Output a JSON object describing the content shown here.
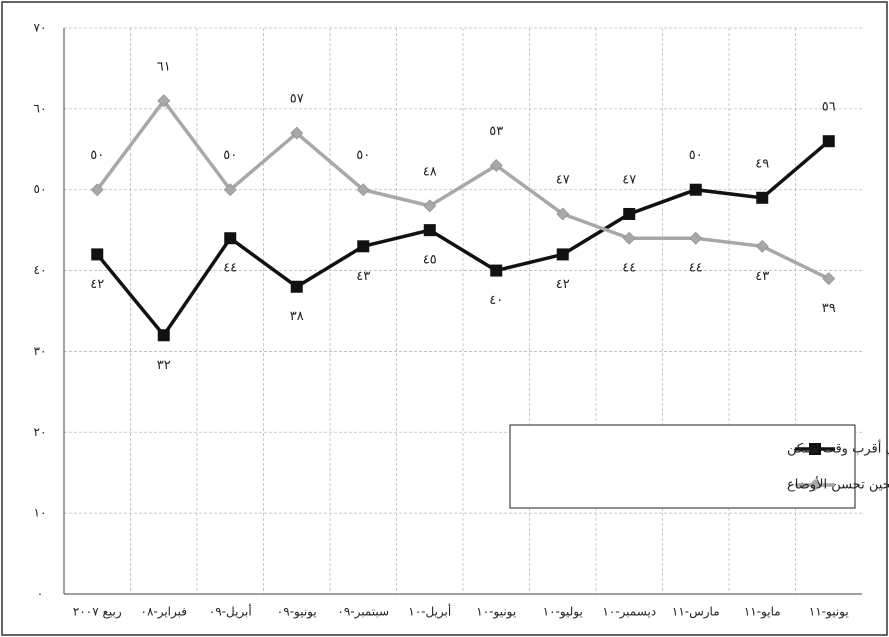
{
  "chart_data": {
    "type": "line",
    "categories": [
      "ربيع ٢٠٠٧",
      "فبراير-٠٨",
      "أبريل-٠٩",
      "يونيو-٠٩",
      "سبتمبر-٠٩",
      "أبريل-١٠",
      "يونيو-١٠",
      "يوليو-١٠",
      "ديسمبر-١٠",
      "مارس-١١",
      "مايو-١١",
      "يونيو-١١"
    ],
    "series": [
      {
        "name": "سحب القوات في أقرب وقت ممكن",
        "color": "#111111",
        "marker": "square",
        "values": [
          42,
          32,
          44,
          38,
          43,
          45,
          40,
          42,
          47,
          50,
          49,
          56
        ],
        "value_labels": [
          "٤٢",
          "٣٢",
          "٤٤",
          "٣٨",
          "٤٣",
          "٤٥",
          "٤٠",
          "٤٢",
          "٤٧",
          "٥٠",
          "٤٩",
          "٥٦"
        ]
      },
      {
        "name": "الاحتفاظ بالقوات لحين تحسن الأوضاع",
        "color": "#a8a8a8",
        "marker": "diamond",
        "values": [
          50,
          61,
          50,
          57,
          50,
          48,
          53,
          47,
          44,
          44,
          43,
          39
        ],
        "value_labels": [
          "٥٠",
          "٦١",
          "٥٠",
          "٥٧",
          "٥٠",
          "٤٨",
          "٥٣",
          "٤٧",
          "٤٤",
          "٤٤",
          "٤٣",
          "٣٩"
        ]
      }
    ],
    "ylim": [
      0,
      70
    ],
    "yticks": [
      {
        "value": 0,
        "label": "٠"
      },
      {
        "value": 10,
        "label": "١٠"
      },
      {
        "value": 20,
        "label": "٢٠"
      },
      {
        "value": 30,
        "label": "٣٠"
      },
      {
        "value": 40,
        "label": "٤٠"
      },
      {
        "value": 50,
        "label": "٥٠"
      },
      {
        "value": 60,
        "label": "٦٠"
      },
      {
        "value": 70,
        "label": "٧٠"
      }
    ],
    "grid": true,
    "legend": "lower right"
  }
}
